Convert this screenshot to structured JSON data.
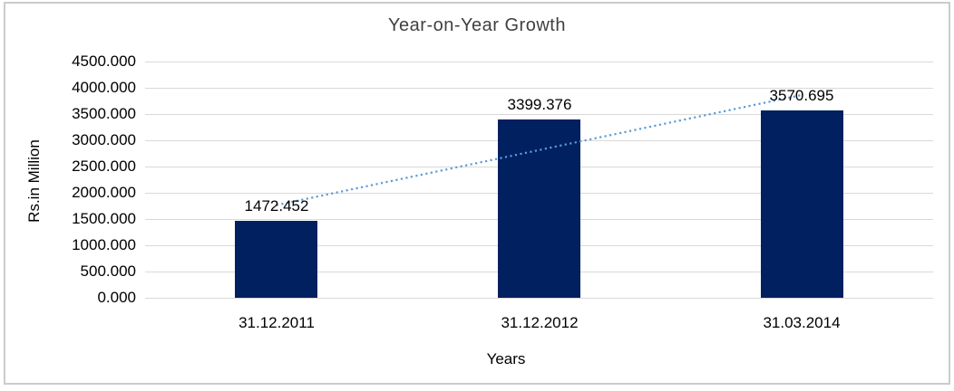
{
  "chart_data": {
    "type": "bar",
    "title": "Year-on-Year Growth",
    "xlabel": "Years",
    "ylabel": "Rs.in Million",
    "categories": [
      "31.12.2011",
      "31.12.2012",
      "31.03.2014"
    ],
    "values": [
      1472.452,
      3399.376,
      3570.695
    ],
    "data_labels": [
      "1472.452",
      "3399.376",
      "3570.695"
    ],
    "ylim": [
      0,
      4500
    ],
    "ytick_step": 500,
    "ytick_labels": [
      "0.000",
      "500.000",
      "1000.000",
      "1500.000",
      "2000.000",
      "2500.000",
      "3000.000",
      "3500.000",
      "4000.000",
      "4500.000"
    ],
    "grid": true,
    "legend_position": "none",
    "trendline": {
      "type": "linear",
      "style": "dotted"
    },
    "colors": {
      "bar": "#002060",
      "trendline": "#5b9bd5",
      "gridline": "#d9d9d9",
      "frame_border": "#cbcbcb",
      "title_text": "#404040",
      "label_text": "#000000"
    }
  }
}
